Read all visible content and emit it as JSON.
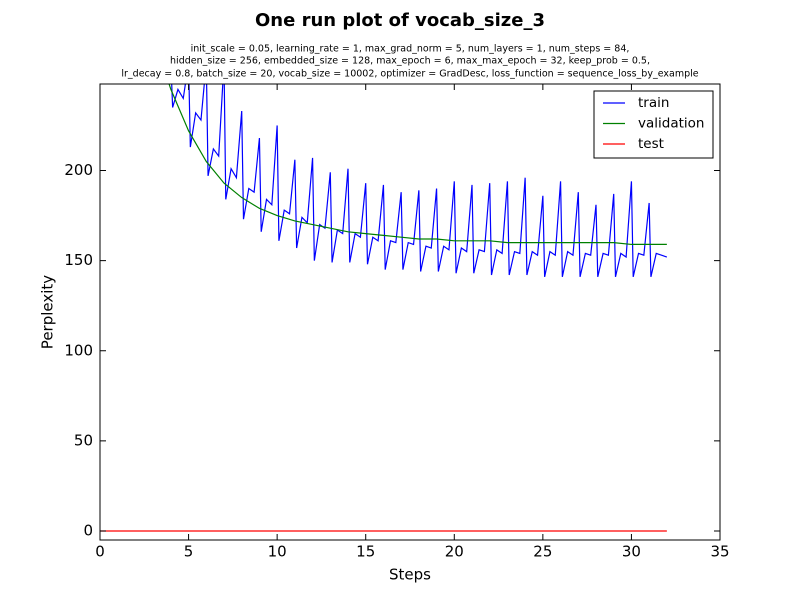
{
  "chart_data": {
    "type": "line",
    "title": "One run plot of vocab_size_3",
    "subtitle": [
      "init_scale = 0.05, learning_rate = 1, max_grad_norm = 5, num_layers = 1, num_steps = 84,",
      "hidden_size = 256, embedded_size = 128, max_epoch = 6, max_max_epoch = 32, keep_prob = 0.5,",
      "lr_decay = 0.8, batch_size = 20, vocab_size = 10002, optimizer = GradDesc, loss_function = sequence_loss_by_example"
    ],
    "x_label": "Steps",
    "y_label": "Perplexity",
    "xlim": [
      0,
      35
    ],
    "ylim": [
      -5,
      248
    ],
    "xticks": [
      0,
      5,
      10,
      15,
      20,
      25,
      30,
      35
    ],
    "yticks": [
      0,
      50,
      100,
      150,
      200
    ],
    "legend": "upper right",
    "series": [
      {
        "name": "train",
        "color": "#0000ff",
        "x": [
          3.7,
          4,
          4.1,
          4.4,
          4.7,
          5,
          5.1,
          5.4,
          5.7,
          6,
          6.1,
          6.4,
          6.7,
          7,
          7.1,
          7.4,
          7.7,
          8,
          8.1,
          8.4,
          8.7,
          9,
          9.1,
          9.4,
          9.7,
          10,
          10.1,
          10.4,
          10.7,
          11,
          11.1,
          11.4,
          11.7,
          12,
          12.1,
          12.4,
          12.7,
          13,
          13.1,
          13.4,
          13.7,
          14,
          14.1,
          14.4,
          14.7,
          15,
          15.1,
          15.4,
          15.7,
          16,
          16.1,
          16.4,
          16.7,
          17,
          17.1,
          17.4,
          17.7,
          18,
          18.1,
          18.4,
          18.7,
          19,
          19.1,
          19.4,
          19.7,
          20,
          20.1,
          20.4,
          20.7,
          21,
          21.1,
          21.4,
          21.7,
          22,
          22.1,
          22.4,
          22.7,
          23,
          23.1,
          23.4,
          23.7,
          24,
          24.1,
          24.4,
          24.7,
          25,
          25.1,
          25.4,
          25.7,
          26,
          26.1,
          26.4,
          26.7,
          27,
          27.1,
          27.4,
          27.7,
          28,
          28.1,
          28.4,
          28.7,
          29,
          29.1,
          29.4,
          29.7,
          30,
          30.1,
          30.4,
          30.7,
          31,
          31.1,
          31.4,
          31.7,
          32
        ],
        "values": [
          260,
          260,
          235,
          245,
          240,
          260,
          213,
          232,
          228,
          260,
          197,
          212,
          208,
          260,
          184,
          201,
          196,
          233,
          173,
          190,
          188,
          218,
          166,
          184,
          181,
          225,
          161,
          178,
          176,
          206,
          157,
          174,
          171,
          207,
          150,
          170,
          168,
          199,
          149,
          167,
          165,
          201,
          149,
          165,
          163,
          193,
          148,
          163,
          161,
          192,
          145,
          161,
          160,
          188,
          145,
          160,
          159,
          189,
          144,
          158,
          157,
          190,
          144,
          158,
          156,
          194,
          143,
          157,
          155,
          192,
          143,
          156,
          155,
          193,
          142,
          156,
          154,
          194,
          142,
          155,
          154,
          196,
          142,
          155,
          153,
          186,
          141,
          155,
          153,
          194,
          141,
          155,
          153,
          188,
          141,
          154,
          153,
          181,
          141,
          154,
          153,
          187,
          141,
          154,
          152,
          194,
          141,
          154,
          153,
          182,
          141,
          154,
          153,
          152
        ]
      },
      {
        "name": "validation",
        "color": "#008000",
        "x": [
          3,
          4,
          5,
          6,
          7,
          8,
          9,
          10,
          11,
          12,
          13,
          14,
          15,
          16,
          17,
          18,
          19,
          20,
          21,
          22,
          23,
          24,
          25,
          26,
          27,
          28,
          29,
          30,
          31,
          32
        ],
        "values": [
          275,
          245,
          222,
          205,
          193,
          185,
          179,
          175,
          172,
          170,
          168,
          166,
          165,
          164,
          163,
          162,
          162,
          161,
          161,
          161,
          160,
          160,
          160,
          160,
          160,
          160,
          160,
          159,
          159,
          159
        ]
      },
      {
        "name": "test",
        "color": "#ff0000",
        "x": [
          0,
          32
        ],
        "values": [
          0,
          0
        ]
      }
    ]
  }
}
